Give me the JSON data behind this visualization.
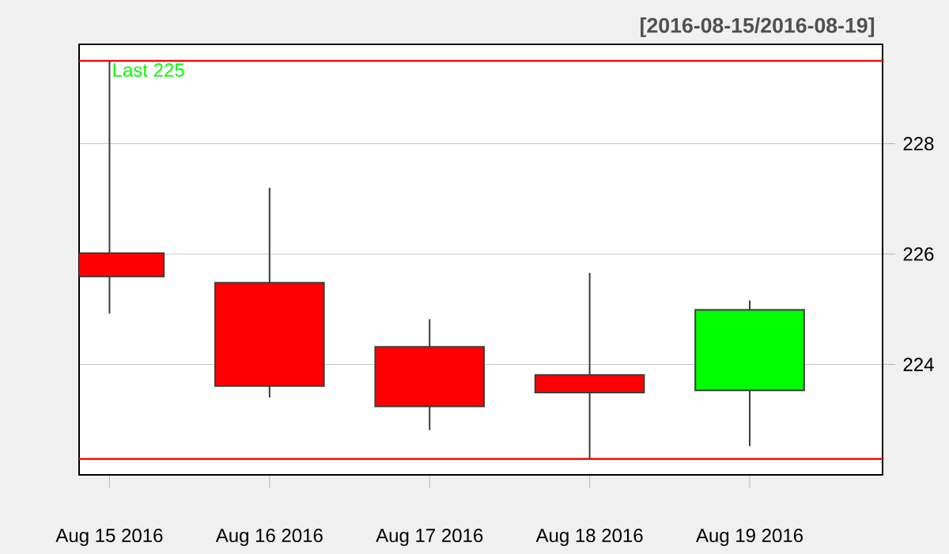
{
  "chart_data": {
    "type": "candlestick",
    "subtitle": "[2016-08-15/2016-08-19]",
    "categories": [
      "Aug 15 2016",
      "Aug 16 2016",
      "Aug 17 2016",
      "Aug 18 2016",
      "Aug 19 2016"
    ],
    "ohlc": [
      [
        226.02,
        229.5,
        224.92,
        225.59
      ],
      [
        225.48,
        227.2,
        223.4,
        223.61
      ],
      [
        224.32,
        224.82,
        222.81,
        223.24
      ],
      [
        223.81,
        225.66,
        222.29,
        223.49
      ],
      [
        223.53,
        225.16,
        222.52,
        224.99
      ]
    ],
    "colors": [
      "#ff0000",
      "#ff0000",
      "#ff0000",
      "#ff0000",
      "#00ff00"
    ],
    "ylim": [
      222.0,
      229.8
    ],
    "yticks": [
      224,
      226,
      228
    ],
    "grid": "y",
    "ref_lines": [
      {
        "axis": "y",
        "value": 229.5,
        "color": "#ff0000"
      },
      {
        "axis": "y",
        "value": 222.29,
        "color": "#ff0000"
      }
    ],
    "annotations": [
      {
        "text": "Last 225",
        "y": 229.5
      }
    ]
  }
}
